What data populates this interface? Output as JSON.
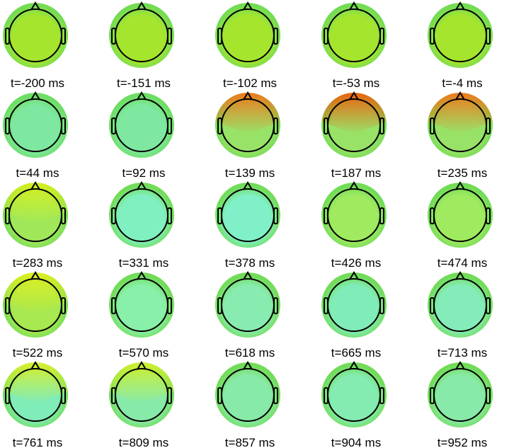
{
  "panels": [
    {
      "label": "t=-200 ms",
      "center": "#a6e52e",
      "rim": "#74dc54"
    },
    {
      "label": "t=-151 ms",
      "center": "#a6e52e",
      "rim": "#74dc54"
    },
    {
      "label": "t=-102 ms",
      "center": "#a6e52e",
      "rim": "#74dc54"
    },
    {
      "label": "t=-53 ms",
      "center": "#a6e52e",
      "rim": "#74dc54"
    },
    {
      "label": "t=-4 ms",
      "center": "#a6e52e",
      "rim": "#74dc54"
    },
    {
      "label": "t=44 ms",
      "center": "#7ee8a0",
      "rim": "#6ede64"
    },
    {
      "label": "t=92 ms",
      "center": "#7ee8a0",
      "rim": "#6ede64"
    },
    {
      "label": "t=139 ms",
      "center": "#98e268",
      "rim": "#74dc54",
      "top": "#f07a1e"
    },
    {
      "label": "t=187 ms",
      "center": "#98e268",
      "rim": "#74dc54",
      "top": "#ee6410"
    },
    {
      "label": "t=235 ms",
      "center": "#98e268",
      "rim": "#74dc54",
      "top": "#f07a1e"
    },
    {
      "label": "t=283 ms",
      "center": "#a0e85a",
      "rim": "#74dc54",
      "top": "#d8f020"
    },
    {
      "label": "t=331 ms",
      "center": "#80f0c0",
      "rim": "#72dc58"
    },
    {
      "label": "t=378 ms",
      "center": "#80f0c8",
      "rim": "#72dc58"
    },
    {
      "label": "t=426 ms",
      "center": "#a0ea60",
      "rim": "#72dc58"
    },
    {
      "label": "t=474 ms",
      "center": "#a0ea60",
      "rim": "#72dc58"
    },
    {
      "label": "t=522 ms",
      "center": "#a8e850",
      "rim": "#72dc58",
      "top": "#e0f020"
    },
    {
      "label": "t=570 ms",
      "center": "#88f0a8",
      "rim": "#72dc58"
    },
    {
      "label": "t=618 ms",
      "center": "#88ecb0",
      "rim": "#72dc58"
    },
    {
      "label": "t=665 ms",
      "center": "#80ecb8",
      "rim": "#72dc58"
    },
    {
      "label": "t=713 ms",
      "center": "#84ecb8",
      "rim": "#72dc58"
    },
    {
      "label": "t=761 ms",
      "center": "#80ecb8",
      "rim": "#72dc58",
      "top": "#d8f030"
    },
    {
      "label": "t=809 ms",
      "center": "#88eaa8",
      "rim": "#72dc58",
      "top": "#d0f030"
    },
    {
      "label": "t=857 ms",
      "center": "#88eaa8",
      "rim": "#72dc58"
    },
    {
      "label": "t=904 ms",
      "center": "#84ecb0",
      "rim": "#72dc58"
    },
    {
      "label": "t=952 ms",
      "center": "#88eaa8",
      "rim": "#72dc58"
    }
  ]
}
